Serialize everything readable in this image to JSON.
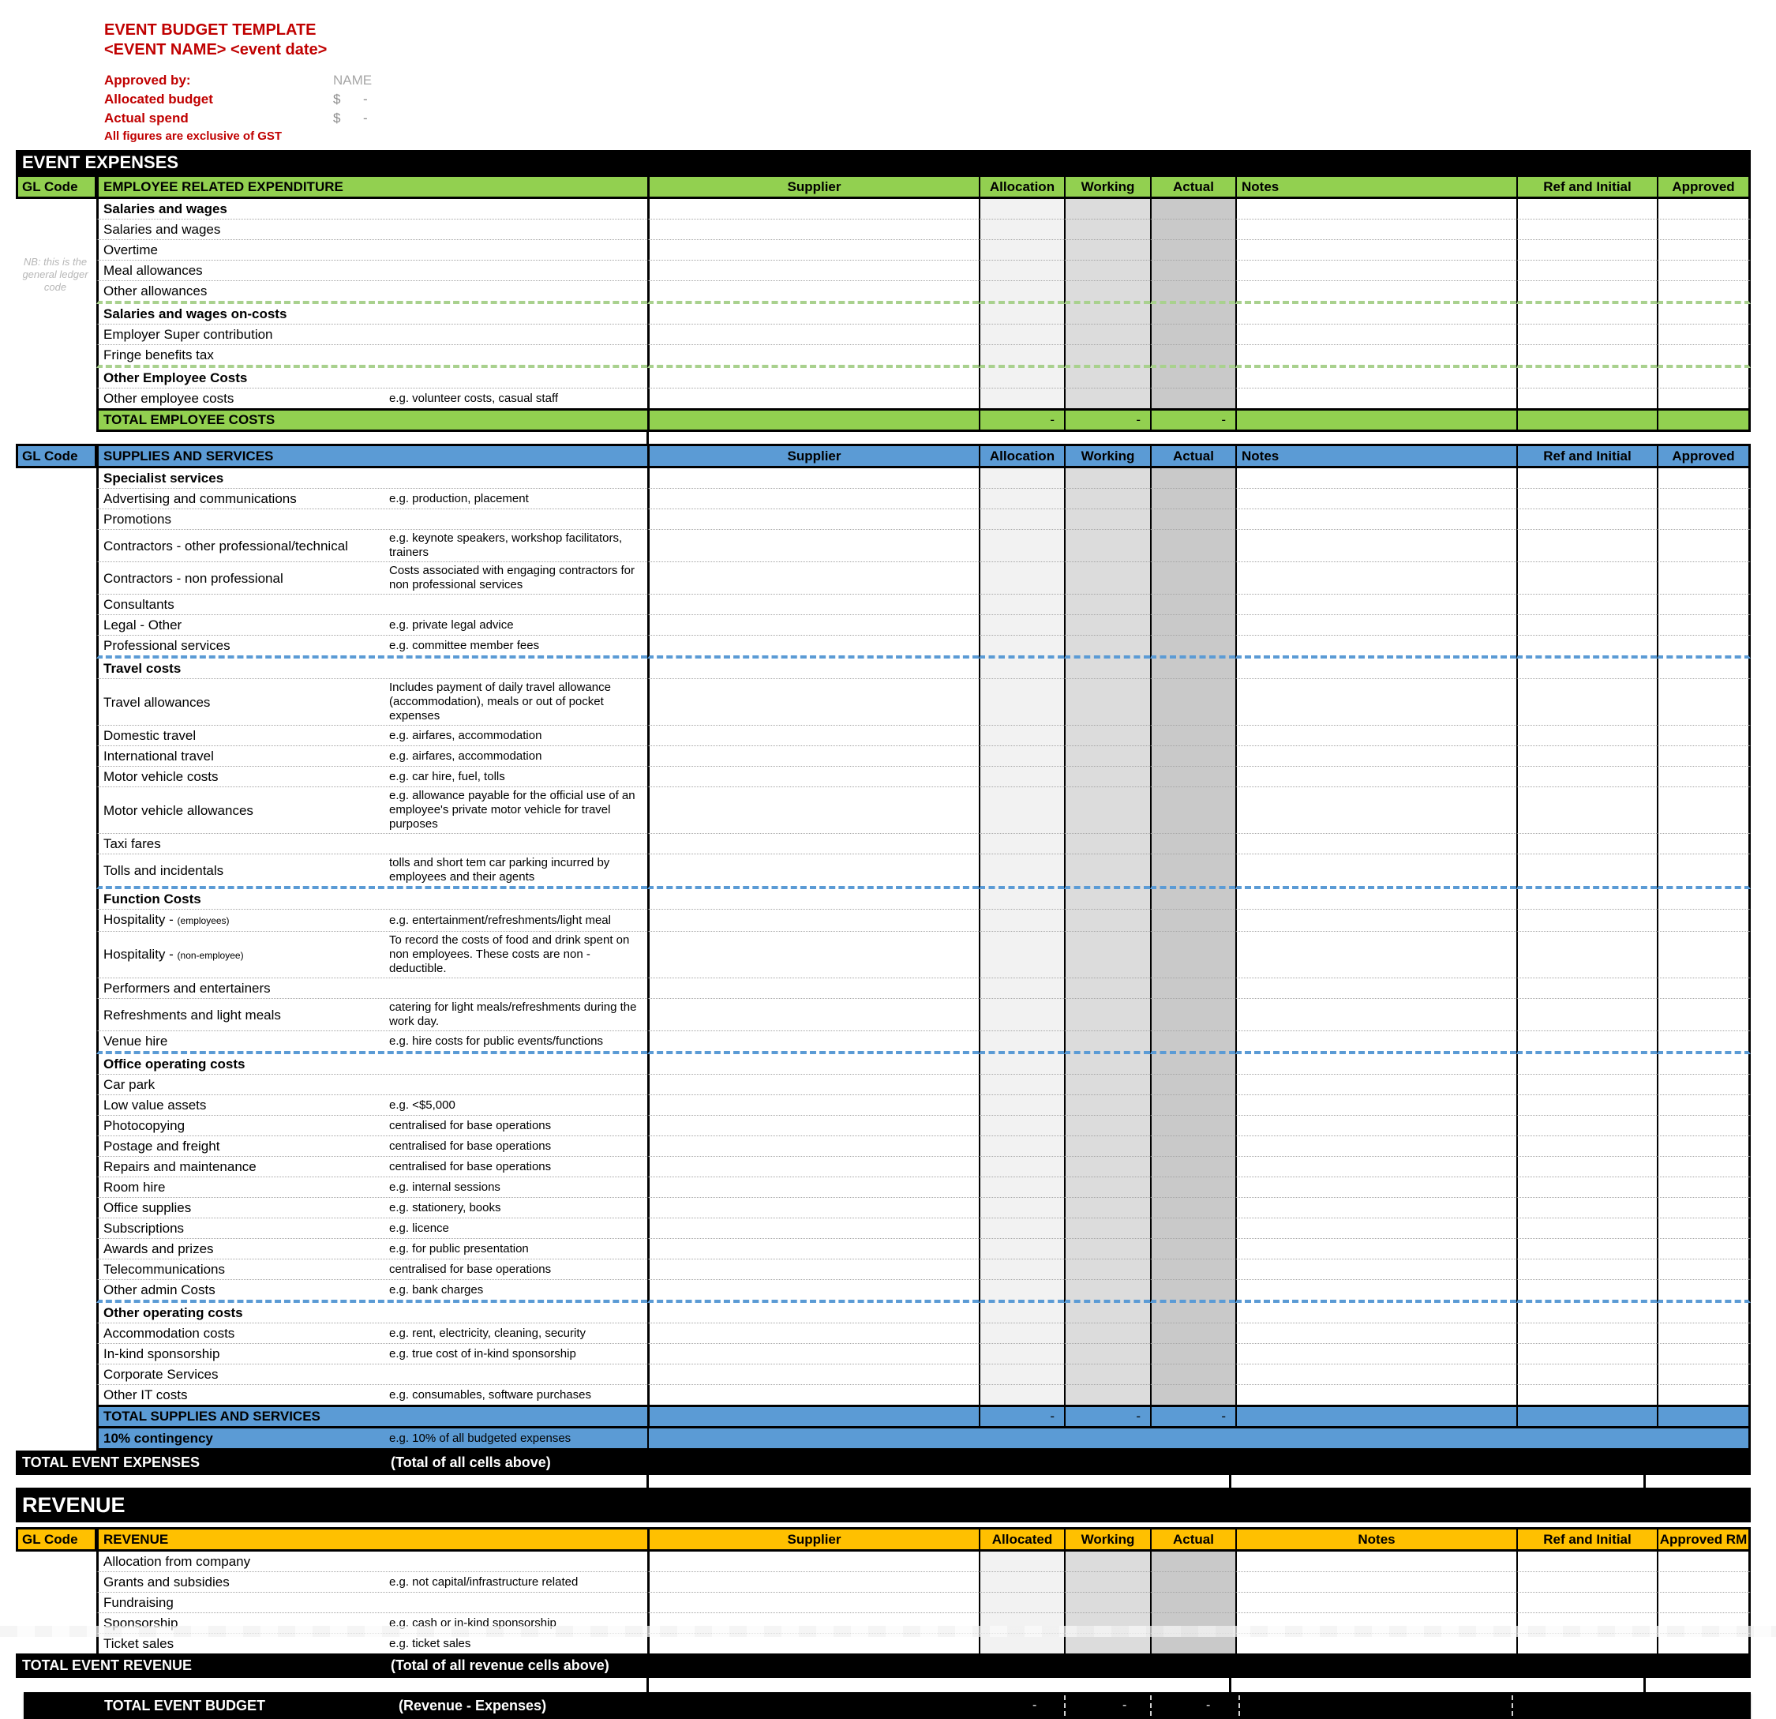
{
  "header": {
    "title": "EVENT BUDGET TEMPLATE",
    "event_placeholder": "<EVENT NAME> <event date>",
    "approved_by_label": "Approved by:",
    "approved_by_value": "NAME",
    "allocated_budget_label": "Allocated budget",
    "allocated_budget_currency": "$",
    "allocated_budget_value": "-",
    "actual_spend_label": "Actual spend",
    "actual_spend_currency": "$",
    "actual_spend_value": "-",
    "gst_note": "All figures are exclusive of GST"
  },
  "expenses_band_title": "EVENT EXPENSES",
  "revenue_band_title": "REVENUE",
  "colors": {
    "section_green": "#92D050",
    "section_blue": "#5B9BD5",
    "section_yellow": "#FFC000",
    "title_red": "#C00000",
    "band_black": "#000000"
  },
  "employee_section": {
    "theme": "green",
    "gl_note": "NB: this is the general ledger code",
    "header": {
      "gl": "GL Code",
      "title": "EMPLOYEE RELATED EXPENDITURE",
      "supplier": "Supplier",
      "allocation": "Allocation",
      "working": "Working",
      "actual": "Actual",
      "notes": "Notes",
      "notes_align": "left",
      "ref": "Ref and Initial",
      "approved": "Approved"
    },
    "rows": [
      {
        "item": "Salaries and wages",
        "bold": true
      },
      {
        "item": "Salaries and wages"
      },
      {
        "item": "Overtime"
      },
      {
        "item": "Meal allowances"
      },
      {
        "item": "Other allowances",
        "sep": true
      },
      {
        "item": "Salaries and wages on-costs",
        "bold": true
      },
      {
        "item": "Employer Super contribution"
      },
      {
        "item": "Fringe benefits tax",
        "sep": true
      },
      {
        "item": "Other Employee Costs",
        "bold": true
      },
      {
        "item": "Other employee costs",
        "note": "e.g. volunteer costs, casual staff"
      }
    ],
    "total": {
      "label": "TOTAL EMPLOYEE COSTS",
      "allocation": "-",
      "working": "-",
      "actual": "-"
    }
  },
  "supplies_section": {
    "theme": "blue",
    "header": {
      "gl": "GL Code",
      "title": "SUPPLIES AND SERVICES",
      "supplier": "Supplier",
      "allocation": "Allocation",
      "working": "Working",
      "actual": "Actual",
      "notes": "Notes",
      "notes_align": "left",
      "ref": "Ref and Initial",
      "approved": "Approved"
    },
    "rows": [
      {
        "item": "Specialist services",
        "bold": true
      },
      {
        "item": "Advertising and communications",
        "note": "e.g. production, placement"
      },
      {
        "item": "Promotions"
      },
      {
        "item": "Contractors - other professional/technical",
        "note": "e.g. keynote speakers, workshop facilitators, trainers"
      },
      {
        "item": "Contractors - non professional",
        "note": "Costs associated with engaging contractors for non professional services"
      },
      {
        "item": "Consultants"
      },
      {
        "item": "Legal - Other",
        "note": "e.g. private legal advice"
      },
      {
        "item": "Professional services",
        "note": "e.g. committee member fees",
        "sep": true
      },
      {
        "item": "Travel costs",
        "bold": true
      },
      {
        "item": "Travel allowances",
        "note": "Includes payment of daily travel allowance (accommodation), meals or out of pocket expenses"
      },
      {
        "item": "Domestic travel",
        "note": "e.g. airfares, accommodation"
      },
      {
        "item": "International travel",
        "note": "e.g. airfares, accommodation"
      },
      {
        "item": "Motor vehicle costs",
        "note": "e.g. car hire, fuel, tolls"
      },
      {
        "item": "Motor vehicle allowances",
        "note": "e.g. allowance payable for the official use of an employee's private motor vehicle for travel purposes"
      },
      {
        "item": "Taxi fares"
      },
      {
        "item": "Tolls and incidentals",
        "note": "tolls and short tem car parking incurred by employees and their agents",
        "sep": true
      },
      {
        "item": "Function Costs",
        "bold": true
      },
      {
        "item": "Hospitality - ",
        "small": "(employees)",
        "note": "e.g. entertainment/refreshments/light meal"
      },
      {
        "item": "Hospitality - ",
        "small": "(non-employee)",
        "note": "To record the costs of food and drink spent on non employees. These costs are non - deductible."
      },
      {
        "item": "Performers and entertainers"
      },
      {
        "item": "Refreshments and light meals",
        "note": "catering for light meals/refreshments during the work day."
      },
      {
        "item": "Venue hire",
        "note": "e.g. hire costs for public events/functions",
        "sep": true
      },
      {
        "item": "Office operating costs",
        "bold": true
      },
      {
        "item": "Car park"
      },
      {
        "item": "Low value assets",
        "note": "e.g. <$5,000"
      },
      {
        "item": "Photocopying",
        "note": "centralised for base operations"
      },
      {
        "item": "Postage and freight",
        "note": "centralised for base operations"
      },
      {
        "item": "Repairs and maintenance",
        "note": "centralised for base operations"
      },
      {
        "item": "Room hire",
        "note": "e.g. internal sessions"
      },
      {
        "item": "Office supplies",
        "note": "e.g. stationery, books"
      },
      {
        "item": "Subscriptions",
        "note": "e.g. licence"
      },
      {
        "item": "Awards and prizes",
        "note": "e.g. for public presentation"
      },
      {
        "item": "Telecommunications",
        "note": "centralised for base operations"
      },
      {
        "item": "Other admin Costs",
        "note": "e.g. bank charges",
        "sep": true
      },
      {
        "item": "Other operating costs",
        "bold": true
      },
      {
        "item": "Accommodation costs",
        "note": "e.g. rent, electricity, cleaning, security"
      },
      {
        "item": "In-kind sponsorship",
        "note": "e.g. true cost of in-kind sponsorship"
      },
      {
        "item": "Corporate Services"
      },
      {
        "item": "Other IT costs",
        "note": "e.g. consumables, software purchases"
      }
    ],
    "total": {
      "label": "TOTAL SUPPLIES AND SERVICES",
      "allocation": "-",
      "working": "-",
      "actual": "-"
    },
    "contingency": {
      "label": "10% contingency",
      "note": "e.g. 10% of all budgeted expenses"
    }
  },
  "total_event_expenses": {
    "label": "TOTAL EVENT EXPENSES",
    "note": "(Total of all cells above)"
  },
  "revenue_section": {
    "theme": "yellow",
    "header": {
      "gl": "GL Code",
      "title": "REVENUE",
      "supplier": "Supplier",
      "allocation": "Allocated",
      "working": "Working",
      "actual": "Actual",
      "notes": "Notes",
      "notes_align": "center",
      "ref": "Ref and Initial",
      "approved": "Approved RM"
    },
    "rows": [
      {
        "item": "Allocation from company"
      },
      {
        "item": "Grants and subsidies",
        "note": "e.g. not capital/infrastructure related"
      },
      {
        "item": "Fundraising"
      },
      {
        "item": "Sponsorship",
        "note": "e.g. cash or in-kind sponsorship"
      },
      {
        "item": "Ticket sales",
        "note": "e.g. ticket sales"
      }
    ]
  },
  "total_event_revenue": {
    "label": "TOTAL EVENT REVENUE",
    "note": "(Total of all revenue cells above)"
  },
  "total_event_budget": {
    "label": "TOTAL EVENT BUDGET",
    "note": "(Revenue - Expenses)",
    "allocated": "-",
    "working": "-",
    "actual": "-"
  }
}
